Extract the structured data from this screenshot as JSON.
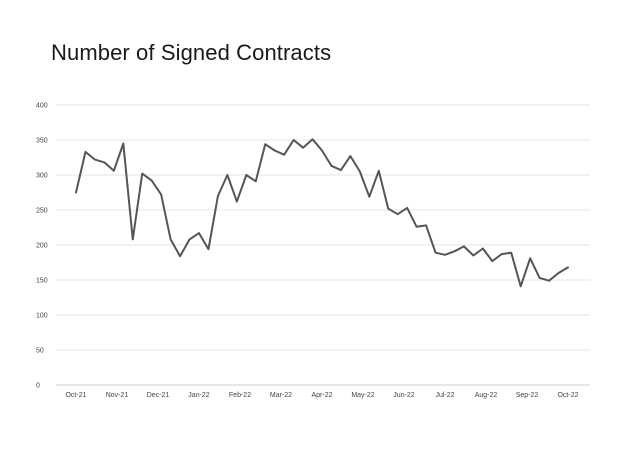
{
  "chart_data": {
    "type": "line",
    "title": "Number of Signed Contracts",
    "xlabel": "",
    "ylabel": "",
    "ylim": [
      0,
      400
    ],
    "y_ticks": [
      0,
      50,
      100,
      150,
      200,
      250,
      300,
      350,
      400
    ],
    "y_tick_labels": [
      "0",
      "50",
      "100",
      "150",
      "200",
      "250",
      "300",
      "350",
      "400"
    ],
    "x_tick_labels": [
      "Oct-21",
      "Nov-21",
      "Dec-21",
      "Jan-22",
      "Feb-22",
      "Mar-22",
      "Apr-22",
      "May-22",
      "Jun-22",
      "Jul-22",
      "Aug-22",
      "Sep-22",
      "Oct-22"
    ],
    "grid": true,
    "legend": "none",
    "colors": {
      "line": "#555555",
      "grid": "#e6e6e6"
    },
    "series": [
      {
        "values": [
          275,
          333,
          322,
          318,
          306,
          345,
          208,
          302,
          292,
          272,
          208,
          184,
          208,
          217,
          194,
          270,
          300,
          262,
          300,
          291,
          344,
          335,
          329,
          350,
          339,
          351,
          335,
          313,
          307,
          327,
          305,
          269,
          306,
          252,
          244,
          253,
          226,
          228,
          189,
          186,
          191,
          198,
          185,
          195,
          177,
          187,
          189,
          141,
          181,
          153,
          149,
          160,
          168
        ]
      }
    ]
  }
}
